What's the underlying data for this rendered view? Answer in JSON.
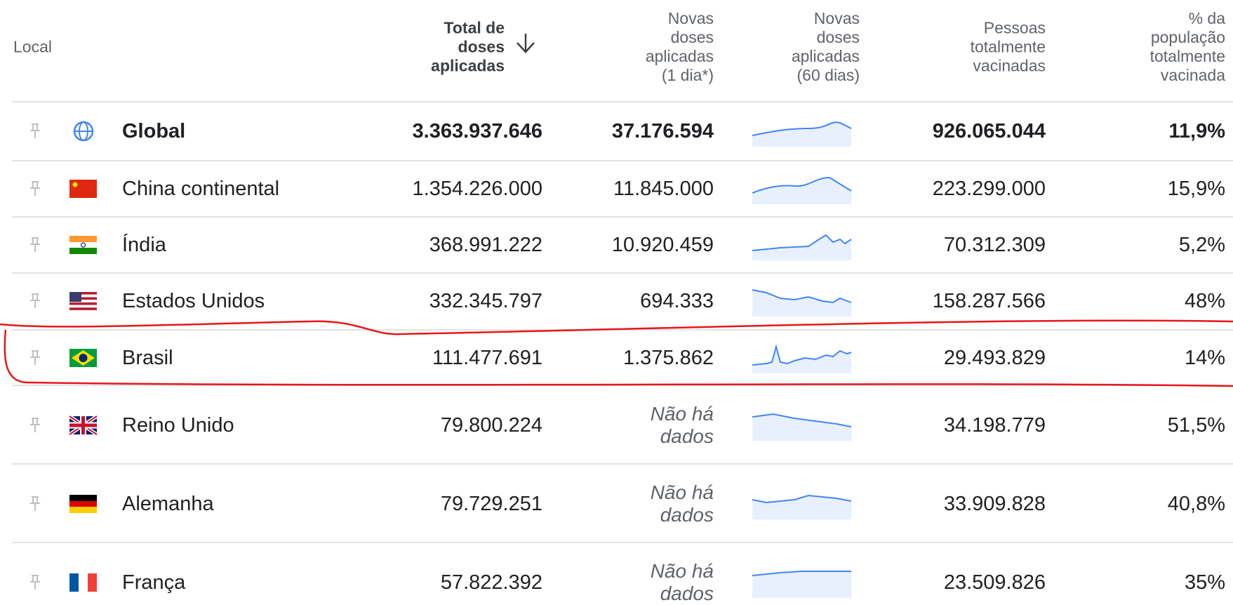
{
  "header": {
    "columns": [
      [
        "Local"
      ],
      [
        "Total de",
        "doses",
        "aplicadas"
      ],
      [
        "Novas",
        "doses",
        "aplicadas",
        "(1 dia*)"
      ],
      [
        "Novas",
        "doses",
        "aplicadas",
        "(60 dias)"
      ],
      [
        "Pessoas",
        "totalmente",
        "vacinadas"
      ],
      [
        "% da",
        "população",
        "totalmente",
        "vacinada"
      ]
    ]
  },
  "rows": [
    {
      "name": "Global",
      "total": "3.363.937.646",
      "new_doses": "37.176.594",
      "fully_vaccinated": "926.065.044",
      "percent": "11,9%"
    },
    {
      "name": "China continental",
      "total": "1.354.226.000",
      "new_doses": "11.845.000",
      "fully_vaccinated": "223.299.000",
      "percent": "15,9%"
    },
    {
      "name": "Índia",
      "total": "368.991.222",
      "new_doses": "10.920.459",
      "fully_vaccinated": "70.312.309",
      "percent": "5,2%"
    },
    {
      "name": "Estados Unidos",
      "total": "332.345.797",
      "new_doses": "694.333",
      "fully_vaccinated": "158.287.566",
      "percent": "48%"
    },
    {
      "name": "Brasil",
      "total": "111.477.691",
      "new_doses": "1.375.862",
      "fully_vaccinated": "29.493.829",
      "percent": "14%"
    },
    {
      "name": "Reino Unido",
      "total": "79.800.224",
      "new_doses": "Não há dados",
      "fully_vaccinated": "34.198.779",
      "percent": "51,5%"
    },
    {
      "name": "Alemanha",
      "total": "79.729.251",
      "new_doses": "Não há dados",
      "fully_vaccinated": "33.909.828",
      "percent": "40,8%"
    },
    {
      "name": "França",
      "total": "57.822.392",
      "new_doses": "Não há dados",
      "fully_vaccinated": "23.509.826",
      "percent": "35%"
    }
  ]
}
